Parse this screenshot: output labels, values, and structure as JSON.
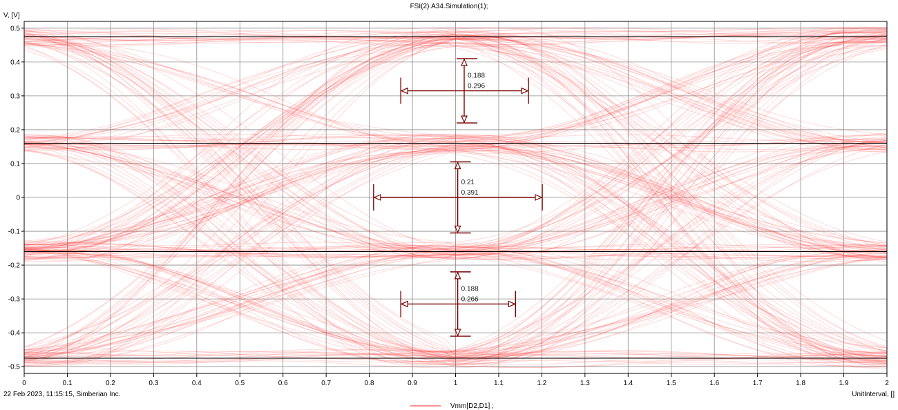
{
  "chart_data": {
    "type": "line",
    "title": "FSI(2).A34.Simulation(1);",
    "ylabel": "V, [V]",
    "xlabel": "UnitInterval, []",
    "footer": "22 Feb 2023, 11:15:15, Simberian Inc.",
    "xlim": [
      0,
      2
    ],
    "ylim": [
      -0.52,
      0.52
    ],
    "x_ticks": [
      0,
      0.1,
      0.2,
      0.3,
      0.4,
      0.5,
      0.6,
      0.7,
      0.8,
      0.9,
      1,
      1.1,
      1.2,
      1.3,
      1.4,
      1.5,
      1.6,
      1.7,
      1.8,
      1.9,
      2
    ],
    "y_ticks": [
      0.5,
      0.4,
      0.3,
      0.2,
      0.1,
      0,
      -0.1,
      -0.2,
      -0.3,
      -0.4,
      -0.5
    ],
    "grid": true,
    "legend_position": "bottom-center",
    "series": [
      {
        "name": "Vmm[D2,D1] ;",
        "color": "#ff2020",
        "style": "eye-diagram"
      }
    ],
    "reference_levels": [
      0.475,
      0.16,
      -0.16,
      -0.475
    ],
    "eye_measurements": [
      {
        "height": "0.188",
        "width": "0.296",
        "center_x": 1.02,
        "center_y": 0.315,
        "v_range": [
          0.22,
          0.41
        ],
        "h_range": [
          0.873,
          1.169
        ]
      },
      {
        "height": "0.21",
        "width": "0.391",
        "center_x": 1.005,
        "center_y": 0.0,
        "v_range": [
          -0.105,
          0.105
        ],
        "h_range": [
          0.81,
          1.201
        ]
      },
      {
        "height": "0.188",
        "width": "0.266",
        "center_x": 1.005,
        "center_y": -0.315,
        "v_range": [
          -0.41,
          -0.22
        ],
        "h_range": [
          0.873,
          1.139
        ]
      }
    ]
  },
  "colors": {
    "trace": "#ff2020",
    "marker": "#7a0000",
    "grid": "#8c8c8c",
    "reference": "#000000"
  }
}
